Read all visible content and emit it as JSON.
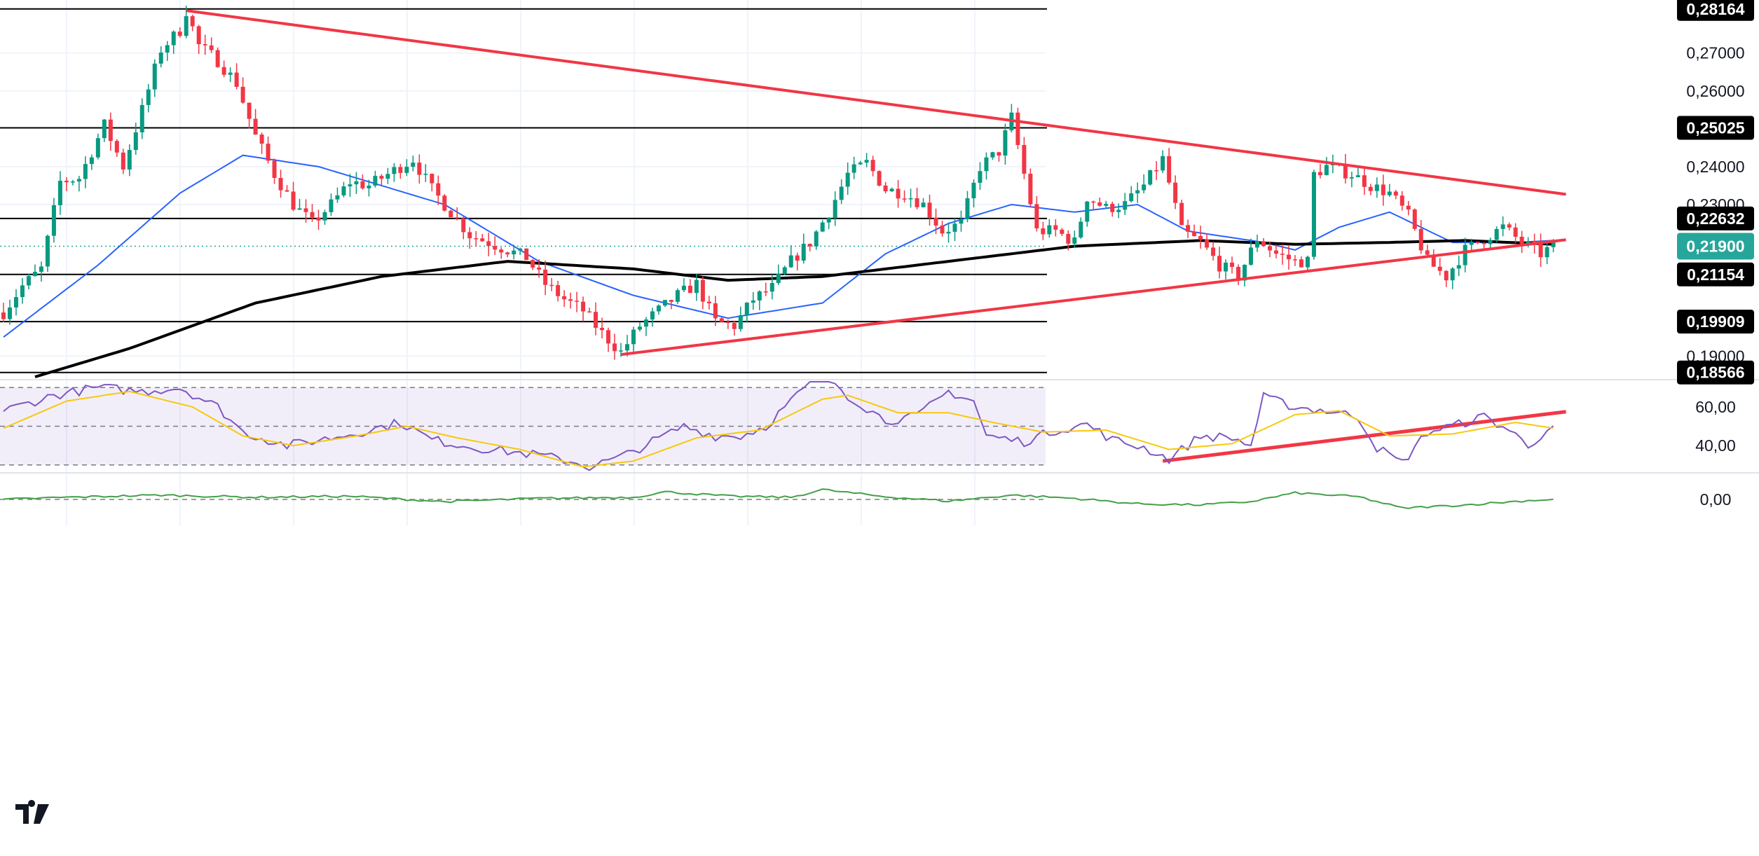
{
  "chart_data": [
    {
      "type": "candlestick",
      "ylim": [
        0.1845,
        0.284
      ],
      "y_ticks": [
        "0,27000",
        "0,26000",
        "0,24000",
        "0,23000",
        "0,19000"
      ],
      "horizontal_levels": [
        {
          "value": 0.28164,
          "label": "0,28164"
        },
        {
          "value": 0.25025,
          "label": "0,25025"
        },
        {
          "value": 0.22632,
          "label": "0,22632"
        },
        {
          "value": 0.21154,
          "label": "0,21154"
        },
        {
          "value": 0.19909,
          "label": "0,19909"
        },
        {
          "value": 0.18566,
          "label": "0,18566"
        }
      ],
      "current_price": {
        "value": 0.219,
        "label": "0,21900",
        "color": "#26a69a"
      },
      "trendlines": [
        {
          "from": [
            29,
            0.2812
          ],
          "to": [
            248,
            0.2327
          ],
          "color": "#f23645"
        },
        {
          "from": [
            98,
            0.1904
          ],
          "to": [
            248,
            0.2207
          ],
          "color": "#f23645"
        }
      ],
      "series": [
        {
          "kind": "ohlc",
          "up_color": "#089981",
          "down_color": "#f23645",
          "anchors": [
            [
              0,
              0.2015
            ],
            [
              3,
              0.2085
            ],
            [
              6,
              0.213
            ],
            [
              9,
              0.236
            ],
            [
              12,
              0.237
            ],
            [
              16,
              0.251
            ],
            [
              19,
              0.24
            ],
            [
              22,
              0.255
            ],
            [
              25,
              0.271
            ],
            [
              28,
              0.276
            ],
            [
              29,
              0.2812
            ],
            [
              31,
              0.272
            ],
            [
              34,
              0.268
            ],
            [
              37,
              0.262
            ],
            [
              40,
              0.248
            ],
            [
              43,
              0.238
            ],
            [
              46,
              0.23
            ],
            [
              49,
              0.225
            ],
            [
              52,
              0.23
            ],
            [
              55,
              0.236
            ],
            [
              58,
              0.235
            ],
            [
              61,
              0.238
            ],
            [
              65,
              0.242
            ],
            [
              68,
              0.234
            ],
            [
              71,
              0.228
            ],
            [
              74,
              0.222
            ],
            [
              77,
              0.22
            ],
            [
              80,
              0.218
            ],
            [
              83,
              0.216
            ],
            [
              86,
              0.209
            ],
            [
              89,
              0.205
            ],
            [
              92,
              0.202
            ],
            [
              95,
              0.196
            ],
            [
              98,
              0.191
            ],
            [
              101,
              0.198
            ],
            [
              104,
              0.202
            ],
            [
              107,
              0.206
            ],
            [
              110,
              0.209
            ],
            [
              113,
              0.199
            ],
            [
              116,
              0.198
            ],
            [
              119,
              0.205
            ],
            [
              122,
              0.208
            ],
            [
              125,
              0.215
            ],
            [
              128,
              0.22
            ],
            [
              131,
              0.228
            ],
            [
              134,
              0.238
            ],
            [
              137,
              0.241
            ],
            [
              140,
              0.234
            ],
            [
              143,
              0.233
            ],
            [
              146,
              0.23
            ],
            [
              149,
              0.223
            ],
            [
              152,
              0.225
            ],
            [
              155,
              0.24
            ],
            [
              158,
              0.244
            ],
            [
              160,
              0.253
            ],
            [
              162,
              0.238
            ],
            [
              164,
              0.223
            ],
            [
              167,
              0.223
            ],
            [
              170,
              0.22
            ],
            [
              172,
              0.232
            ],
            [
              175,
              0.229
            ],
            [
              178,
              0.23
            ],
            [
              181,
              0.235
            ],
            [
              184,
              0.242
            ],
            [
              187,
              0.223
            ],
            [
              190,
              0.22
            ],
            [
              193,
              0.214
            ],
            [
              196,
              0.211
            ],
            [
              199,
              0.221
            ],
            [
              202,
              0.217
            ],
            [
              205,
              0.215
            ],
            [
              207,
              0.215
            ],
            [
              208,
              0.238
            ],
            [
              210,
              0.24
            ],
            [
              214,
              0.238
            ],
            [
              217,
              0.235
            ],
            [
              220,
              0.233
            ],
            [
              223,
              0.227
            ],
            [
              226,
              0.215
            ],
            [
              229,
              0.211
            ],
            [
              232,
              0.218
            ],
            [
              235,
              0.221
            ],
            [
              238,
              0.224
            ],
            [
              241,
              0.22
            ],
            [
              244,
              0.217
            ],
            [
              246,
              0.219
            ]
          ]
        },
        {
          "kind": "line",
          "color": "#2962ff",
          "anchors": [
            [
              0,
              0.195
            ],
            [
              15,
              0.214
            ],
            [
              28,
              0.233
            ],
            [
              38,
              0.243
            ],
            [
              50,
              0.24
            ],
            [
              70,
              0.23
            ],
            [
              85,
              0.215
            ],
            [
              100,
              0.206
            ],
            [
              115,
              0.2
            ],
            [
              130,
              0.204
            ],
            [
              140,
              0.217
            ],
            [
              150,
              0.225
            ],
            [
              160,
              0.23
            ],
            [
              170,
              0.228
            ],
            [
              180,
              0.23
            ],
            [
              188,
              0.223
            ],
            [
              200,
              0.22
            ],
            [
              205,
              0.218
            ],
            [
              212,
              0.224
            ],
            [
              220,
              0.228
            ],
            [
              230,
              0.22
            ],
            [
              240,
              0.22
            ],
            [
              246,
              0.2205
            ]
          ]
        },
        {
          "kind": "line",
          "color": "#000000",
          "anchors": [
            [
              0,
              0.182
            ],
            [
              20,
              0.192
            ],
            [
              40,
              0.204
            ],
            [
              60,
              0.211
            ],
            [
              80,
              0.215
            ],
            [
              100,
              0.213
            ],
            [
              115,
              0.21
            ],
            [
              130,
              0.211
            ],
            [
              150,
              0.215
            ],
            [
              170,
              0.219
            ],
            [
              190,
              0.2205
            ],
            [
              205,
              0.2195
            ],
            [
              220,
              0.22
            ],
            [
              232,
              0.2205
            ],
            [
              246,
              0.2195
            ]
          ]
        }
      ]
    },
    {
      "type": "line",
      "ylim": [
        27,
        73
      ],
      "y_ticks": [
        "60,00",
        "40,00"
      ],
      "band": [
        30,
        70
      ],
      "trendlines": [
        {
          "from": [
            184,
            32
          ],
          "to": [
            248,
            57.5
          ],
          "color": "#f23645"
        }
      ],
      "series": [
        {
          "color": "#7e57c2",
          "anchors": [
            [
              0,
              58
            ],
            [
              8,
              66
            ],
            [
              15,
              70
            ],
            [
              22,
              68
            ],
            [
              28,
              70
            ],
            [
              34,
              60
            ],
            [
              38,
              47
            ],
            [
              45,
              40
            ],
            [
              52,
              44
            ],
            [
              58,
              48
            ],
            [
              63,
              52
            ],
            [
              68,
              43
            ],
            [
              75,
              39
            ],
            [
              80,
              37
            ],
            [
              85,
              35
            ],
            [
              90,
              32
            ],
            [
              93,
              29
            ],
            [
              98,
              34
            ],
            [
              103,
              42
            ],
            [
              108,
              50
            ],
            [
              113,
              45
            ],
            [
              117,
              45
            ],
            [
              121,
              50
            ],
            [
              125,
              63
            ],
            [
              128,
              72
            ],
            [
              131,
              76
            ],
            [
              134,
              66
            ],
            [
              140,
              53
            ],
            [
              145,
              55
            ],
            [
              150,
              68
            ],
            [
              154,
              63
            ],
            [
              156,
              45
            ],
            [
              162,
              42
            ],
            [
              167,
              48
            ],
            [
              172,
              51
            ],
            [
              176,
              43
            ],
            [
              181,
              39
            ],
            [
              185,
              33
            ],
            [
              190,
              45
            ],
            [
              195,
              44
            ],
            [
              198,
              40
            ],
            [
              200,
              65
            ],
            [
              205,
              60
            ],
            [
              210,
              58
            ],
            [
              215,
              55
            ],
            [
              218,
              39
            ],
            [
              222,
              31
            ],
            [
              226,
              47
            ],
            [
              231,
              51
            ],
            [
              235,
              55
            ],
            [
              239,
              48
            ],
            [
              242,
              40
            ],
            [
              245,
              48
            ]
          ]
        },
        {
          "color": "#f7c80f",
          "anchors": [
            [
              0,
              49
            ],
            [
              10,
              63
            ],
            [
              20,
              68
            ],
            [
              30,
              60
            ],
            [
              38,
              45
            ],
            [
              46,
              40
            ],
            [
              56,
              45
            ],
            [
              64,
              50
            ],
            [
              72,
              44
            ],
            [
              82,
              38
            ],
            [
              92,
              29
            ],
            [
              100,
              32
            ],
            [
              110,
              44
            ],
            [
              120,
              48
            ],
            [
              130,
              64
            ],
            [
              134,
              66
            ],
            [
              142,
              57
            ],
            [
              150,
              57
            ],
            [
              157,
              52
            ],
            [
              165,
              47
            ],
            [
              175,
              48
            ],
            [
              185,
              38
            ],
            [
              195,
              41
            ],
            [
              205,
              56
            ],
            [
              212,
              58
            ],
            [
              220,
              45
            ],
            [
              230,
              46
            ],
            [
              240,
              52
            ],
            [
              246,
              49
            ]
          ]
        }
      ]
    },
    {
      "type": "line",
      "ylim": [
        -0.045,
        0.045
      ],
      "y_ticks": [
        "0,00"
      ],
      "series": [
        {
          "color": "#43a047",
          "anchors": [
            [
              0,
              0.0
            ],
            [
              10,
              0.004
            ],
            [
              25,
              0.008
            ],
            [
              40,
              0.004
            ],
            [
              55,
              0.006
            ],
            [
              70,
              -0.004
            ],
            [
              85,
              0.002
            ],
            [
              100,
              0.004
            ],
            [
              105,
              0.014
            ],
            [
              115,
              0.006
            ],
            [
              125,
              0.004
            ],
            [
              130,
              0.018
            ],
            [
              140,
              0.005
            ],
            [
              150,
              -0.003
            ],
            [
              160,
              0.008
            ],
            [
              170,
              0.002
            ],
            [
              180,
              -0.008
            ],
            [
              190,
              -0.01
            ],
            [
              198,
              -0.004
            ],
            [
              205,
              0.012
            ],
            [
              215,
              0.005
            ],
            [
              222,
              -0.016
            ],
            [
              232,
              -0.01
            ],
            [
              242,
              -0.002
            ],
            [
              246,
              0.0
            ]
          ]
        }
      ]
    }
  ]
}
